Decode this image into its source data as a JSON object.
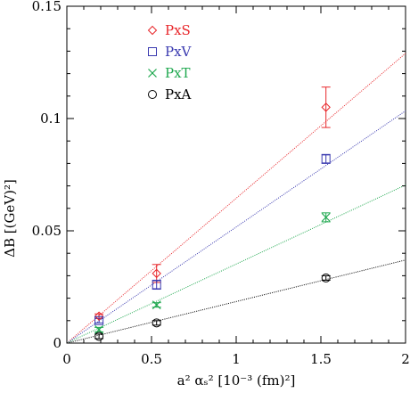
{
  "chart_data": {
    "type": "scatter",
    "xlabel": {
      "text": "a² αₛ² [10⁻³ (fm)²]"
    },
    "ylabel": {
      "text": "ΔB [(GeV)²]"
    },
    "xlim": [
      0,
      2
    ],
    "ylim": [
      0,
      0.15
    ],
    "x_ticks": [
      "0",
      "0.5",
      "1",
      "1.5",
      "2"
    ],
    "y_ticks": [
      "0",
      "0.05",
      "0.1",
      "0.15"
    ],
    "grid": false,
    "legend_position": "top-left",
    "series": [
      {
        "name": "PxS",
        "marker": "diamond",
        "color": "#e8262a",
        "points": [
          {
            "x": 0.19,
            "y": 0.012,
            "err": 0.001
          },
          {
            "x": 0.53,
            "y": 0.031,
            "err": 0.004
          },
          {
            "x": 1.53,
            "y": 0.105,
            "err": 0.009
          }
        ],
        "fit_slope": 0.0645
      },
      {
        "name": "PxV",
        "marker": "square",
        "color": "#3a3ab0",
        "points": [
          {
            "x": 0.19,
            "y": 0.01,
            "err": 0.001
          },
          {
            "x": 0.53,
            "y": 0.026,
            "err": 0.002
          },
          {
            "x": 1.53,
            "y": 0.082,
            "err": 0.002
          }
        ],
        "fit_slope": 0.0517
      },
      {
        "name": "PxT",
        "marker": "cross",
        "color": "#1fa84f",
        "points": [
          {
            "x": 0.19,
            "y": 0.006,
            "err": 0.001
          },
          {
            "x": 0.53,
            "y": 0.017,
            "err": 0.001
          },
          {
            "x": 1.53,
            "y": 0.056,
            "err": 0.002
          }
        ],
        "fit_slope": 0.0352
      },
      {
        "name": "PxA",
        "marker": "circle",
        "color": "#000000",
        "points": [
          {
            "x": 0.19,
            "y": 0.003,
            "err": 0.001
          },
          {
            "x": 0.53,
            "y": 0.009,
            "err": 0.001
          },
          {
            "x": 1.53,
            "y": 0.029,
            "err": 0.001
          }
        ],
        "fit_slope": 0.0185
      }
    ]
  }
}
